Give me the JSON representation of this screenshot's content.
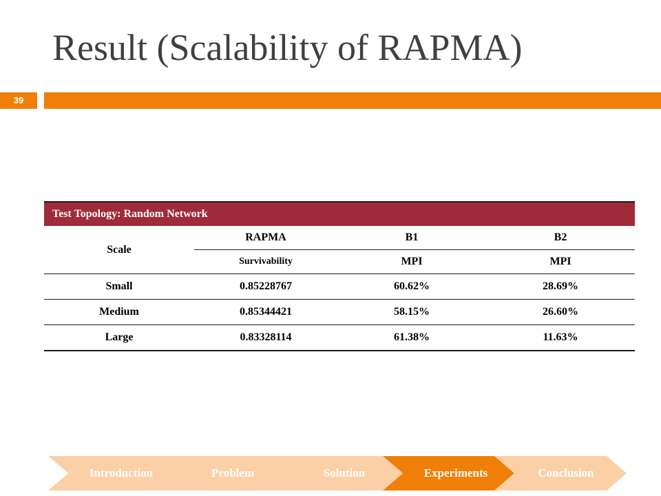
{
  "slide": {
    "title": "Result (Scalability of RAPMA)",
    "page_number": "39"
  },
  "table": {
    "header": "Test Topology: Random Network",
    "scale_label": "Scale",
    "columns": [
      {
        "name": "RAPMA",
        "metric": "Survivability"
      },
      {
        "name": "B1",
        "metric": "MPI"
      },
      {
        "name": "B2",
        "metric": "MPI"
      }
    ],
    "rows": [
      {
        "scale": "Small",
        "rapma": "0.85228767",
        "b1": "60.62%",
        "b2": "28.69%"
      },
      {
        "scale": "Medium",
        "rapma": "0.85344421",
        "b1": "58.15%",
        "b2": "26.60%"
      },
      {
        "scale": "Large",
        "rapma": "0.83328114",
        "b1": "61.38%",
        "b2": "11.63%"
      }
    ]
  },
  "nav": {
    "steps": [
      "Introduction",
      "Problem",
      "Solution",
      "Experiments",
      "Conclusion"
    ],
    "active": "Experiments",
    "active_color": "#f07f09",
    "inactive_color": "#fbd0a6"
  },
  "colors": {
    "accent": "#f07f09",
    "table_header": "#9e2a3a"
  }
}
